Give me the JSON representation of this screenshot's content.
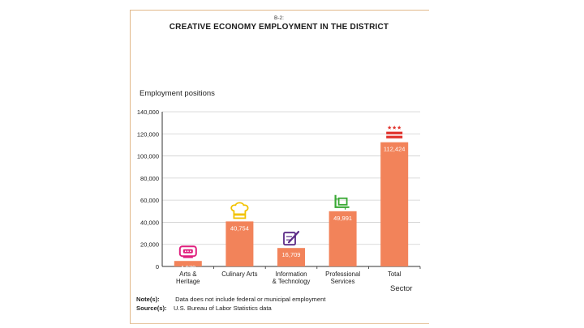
{
  "figure": {
    "number": "B-2:",
    "title": "CREATIVE ECONOMY EMPLOYMENT IN THE DISTRICT"
  },
  "notes": {
    "note_label": "Note(s):",
    "note_text": "Data does not include federal or municipal employment",
    "source_label": "Source(s):",
    "source_text": "U.S. Bureau of Labor Statistics data"
  },
  "chart_data": {
    "type": "bar",
    "title": "CREATIVE ECONOMY EMPLOYMENT IN THE DISTRICT",
    "ylabel": "Employment positions",
    "xlabel": "Sector",
    "ylim": [
      0,
      140000
    ],
    "yticks": [
      0,
      20000,
      40000,
      60000,
      80000,
      100000,
      120000,
      140000
    ],
    "ytick_labels": [
      "0",
      "20,000",
      "40,000",
      "60,000",
      "80,000",
      "100,000",
      "120,000",
      "140,000"
    ],
    "grid": true,
    "categories": [
      [
        "Arts &",
        "Heritage"
      ],
      [
        "Culinary Arts"
      ],
      [
        "Information",
        "& Technology"
      ],
      [
        "Professional",
        "Services"
      ],
      [
        "Total"
      ]
    ],
    "values": [
      4970,
      40754,
      16709,
      49991,
      112424
    ],
    "data_labels": [
      "4,970",
      "40,754",
      "16,709",
      "49,991",
      "112,424"
    ],
    "bar_color": "#f2835a",
    "icons": [
      "ticket-icon",
      "chef-hat-icon",
      "tablet-pen-icon",
      "drafting-square-icon",
      "dc-flag-icon"
    ],
    "icon_colors": [
      "#e0207f",
      "#f2c200",
      "#5b2a86",
      "#3aa935",
      "#e0312b"
    ]
  }
}
